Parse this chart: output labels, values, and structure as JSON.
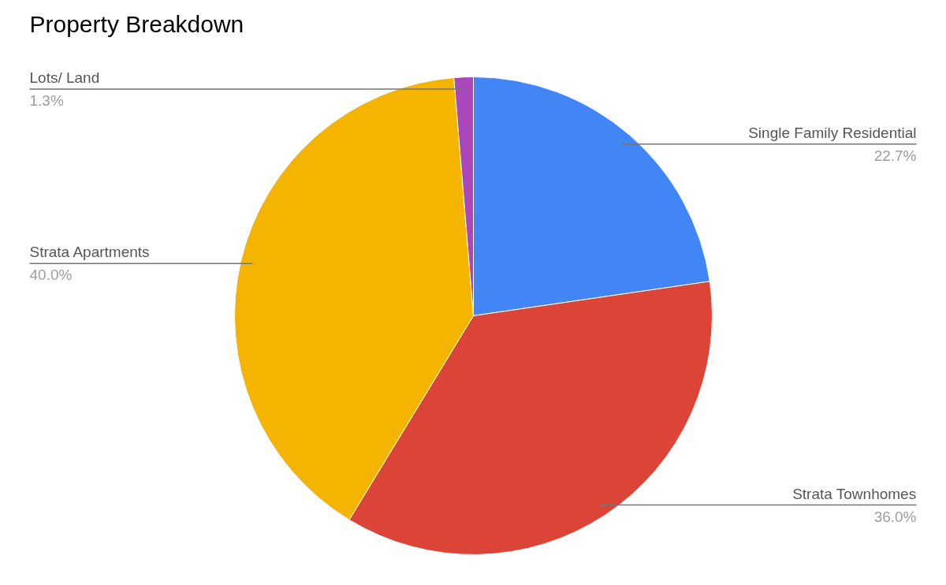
{
  "chart_data": {
    "type": "pie",
    "title": "Property Breakdown",
    "categories": [
      "Single Family Residential",
      "Strata Townhomes",
      "Strata Apartments",
      "Lots/ Land"
    ],
    "values": [
      22.7,
      36.0,
      40.0,
      1.3
    ],
    "colors": [
      "#4285f4",
      "#db4437",
      "#f4b400",
      "#ab47bc"
    ],
    "value_labels": [
      "22.7%",
      "36.0%",
      "40.0%",
      "1.3%"
    ]
  }
}
